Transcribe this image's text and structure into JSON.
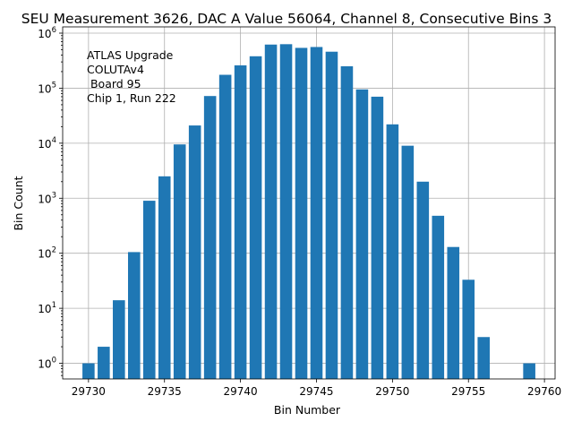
{
  "chart_data": {
    "type": "bar",
    "title": "SEU Measurement 3626, DAC A Value 56064, Channel 8, Consecutive Bins 3",
    "xlabel": "Bin Number",
    "ylabel": "Bin Count",
    "yscale": "log",
    "xlim": [
      29728.3,
      29760.7
    ],
    "ylim": [
      0.52,
      1300000
    ],
    "grid": true,
    "annotation": [
      "ATLAS Upgrade",
      "COLUTAv4",
      " Board 95",
      "Chip 1, Run 222"
    ],
    "bar_color": "#1f77b4",
    "x_ticks": [
      {
        "value": 29730,
        "label": "29730"
      },
      {
        "value": 29735,
        "label": "29735"
      },
      {
        "value": 29740,
        "label": "29740"
      },
      {
        "value": 29745,
        "label": "29745"
      },
      {
        "value": 29750,
        "label": "29750"
      },
      {
        "value": 29755,
        "label": "29755"
      },
      {
        "value": 29760,
        "label": "29760"
      }
    ],
    "y_ticks": [
      {
        "value": 1,
        "base": "10",
        "exp": "0"
      },
      {
        "value": 10,
        "base": "10",
        "exp": "1"
      },
      {
        "value": 100,
        "base": "10",
        "exp": "2"
      },
      {
        "value": 1000,
        "base": "10",
        "exp": "3"
      },
      {
        "value": 10000,
        "base": "10",
        "exp": "4"
      },
      {
        "value": 100000,
        "base": "10",
        "exp": "5"
      },
      {
        "value": 1000000,
        "base": "10",
        "exp": "6"
      }
    ],
    "bars": [
      {
        "x": 29730,
        "y": 1
      },
      {
        "x": 29731,
        "y": 2
      },
      {
        "x": 29732,
        "y": 14
      },
      {
        "x": 29733,
        "y": 105
      },
      {
        "x": 29734,
        "y": 900
      },
      {
        "x": 29735,
        "y": 2500
      },
      {
        "x": 29736,
        "y": 9500
      },
      {
        "x": 29737,
        "y": 21000
      },
      {
        "x": 29738,
        "y": 72000
      },
      {
        "x": 29739,
        "y": 175000
      },
      {
        "x": 29740,
        "y": 260000
      },
      {
        "x": 29741,
        "y": 380000
      },
      {
        "x": 29742,
        "y": 620000
      },
      {
        "x": 29743,
        "y": 630000
      },
      {
        "x": 29744,
        "y": 540000
      },
      {
        "x": 29745,
        "y": 560000
      },
      {
        "x": 29746,
        "y": 460000
      },
      {
        "x": 29747,
        "y": 250000
      },
      {
        "x": 29748,
        "y": 95000
      },
      {
        "x": 29749,
        "y": 70000
      },
      {
        "x": 29750,
        "y": 22000
      },
      {
        "x": 29751,
        "y": 9000
      },
      {
        "x": 29752,
        "y": 2000
      },
      {
        "x": 29753,
        "y": 480
      },
      {
        "x": 29754,
        "y": 130
      },
      {
        "x": 29755,
        "y": 33
      },
      {
        "x": 29756,
        "y": 3
      },
      {
        "x": 29759,
        "y": 1
      }
    ]
  }
}
